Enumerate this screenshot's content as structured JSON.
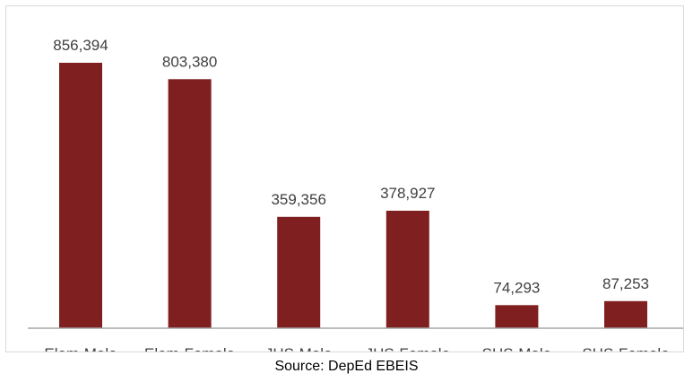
{
  "chart_data": {
    "type": "bar",
    "categories": [
      "Elem-Male",
      "Elem-Female",
      "JHS-Male",
      "JHS-Female",
      "SHS-Male",
      "SHS-Female"
    ],
    "values": [
      856394,
      803380,
      359356,
      378927,
      74293,
      87253
    ],
    "data_labels": [
      "856,394",
      "803,380",
      "359,356",
      "378,927",
      "74,293",
      "87,253"
    ],
    "ylim": [
      0,
      856394
    ],
    "grid": false,
    "legend": "none",
    "bar_color": "#7f1f1f",
    "axis_color": "#a6a6a6"
  },
  "source_note": "Source: DepEd EBEIS"
}
